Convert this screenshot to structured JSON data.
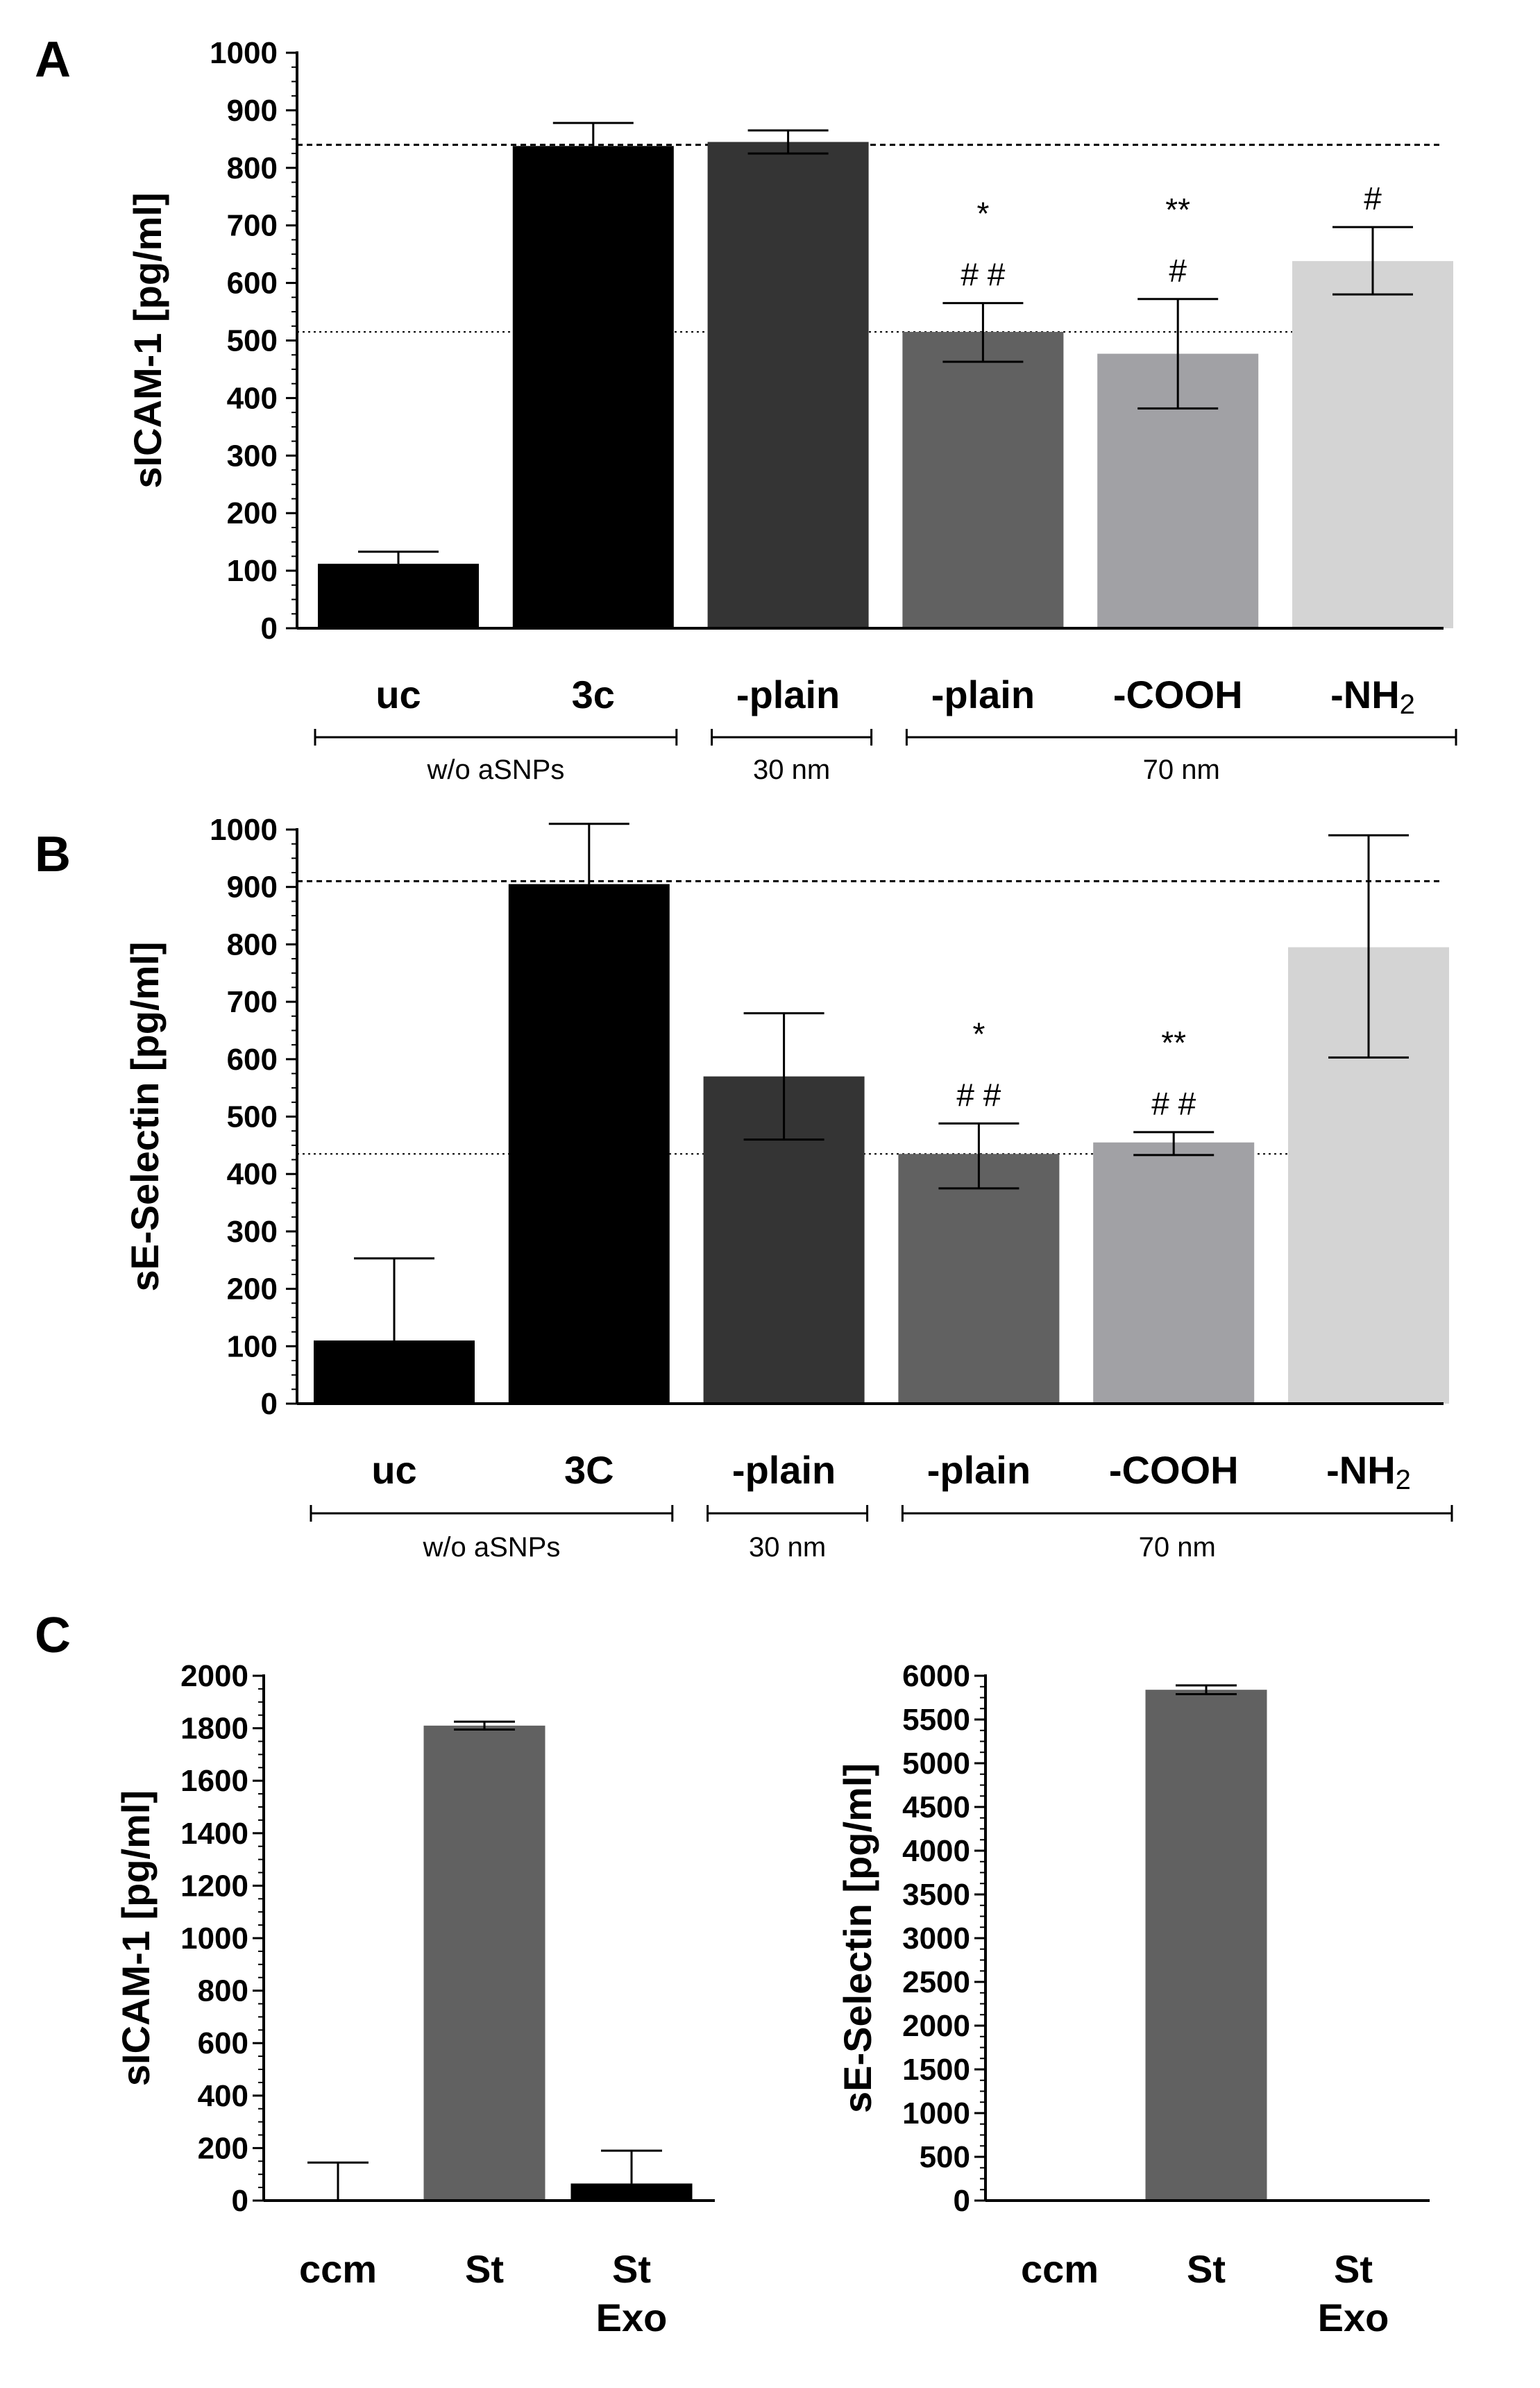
{
  "colors": {
    "uc": "#000000",
    "c3": "#000000",
    "plain30": "#343434",
    "plain70": "#616161",
    "cooh": "#a1a1a5",
    "nh2": "#d4d4d4",
    "st": "#616161",
    "stexo": "#000000",
    "axis": "#000000"
  },
  "chart_data": [
    {
      "panel": "A",
      "type": "bar",
      "ylabel": "sICAM-1 [pg/ml]",
      "ylim": [
        0,
        1000
      ],
      "yticks": [
        0,
        100,
        200,
        300,
        400,
        500,
        600,
        700,
        800,
        900,
        1000
      ],
      "categories": [
        "uc",
        "3c",
        "-plain",
        "-plain",
        "-COOH",
        "-NH"
      ],
      "category_subscripts": [
        "",
        "",
        "",
        "",
        "",
        "2"
      ],
      "values": [
        112,
        838,
        845,
        515,
        477,
        638
      ],
      "error_upper": [
        133,
        878,
        865,
        565,
        572,
        697
      ],
      "error_lower": [
        112,
        838,
        825,
        463,
        382,
        580
      ],
      "bar_colors": [
        "uc",
        "c3",
        "plain30",
        "plain70",
        "cooh",
        "nh2"
      ],
      "annotations": [
        {
          "bar": 3,
          "lines": [
            "*",
            "# #"
          ]
        },
        {
          "bar": 4,
          "lines": [
            "**",
            "#"
          ]
        },
        {
          "bar": 5,
          "lines": [
            "#"
          ]
        }
      ],
      "reference_lines": [
        {
          "value": 840,
          "style": "dashed"
        },
        {
          "value": 515,
          "style": "dotted"
        }
      ],
      "groups": [
        {
          "label": "w/o aSNPs",
          "bars": [
            0,
            1
          ]
        },
        {
          "label": "30 nm",
          "bars": [
            2,
            2
          ]
        },
        {
          "label": "70 nm",
          "bars": [
            3,
            5
          ]
        }
      ]
    },
    {
      "panel": "B",
      "type": "bar",
      "ylabel": "sE-Selectin [pg/ml]",
      "ylim": [
        0,
        1000
      ],
      "yticks": [
        0,
        100,
        200,
        300,
        400,
        500,
        600,
        700,
        800,
        900,
        1000
      ],
      "categories": [
        "uc",
        "3C",
        "-plain",
        "-plain",
        "-COOH",
        "-NH"
      ],
      "category_subscripts": [
        "",
        "",
        "",
        "",
        "",
        "2"
      ],
      "values": [
        110,
        905,
        570,
        435,
        455,
        795
      ],
      "error_upper": [
        253,
        1010,
        680,
        488,
        473,
        990
      ],
      "error_lower": [
        110,
        905,
        460,
        375,
        433,
        603
      ],
      "bar_colors": [
        "uc",
        "c3",
        "plain30",
        "plain70",
        "cooh",
        "nh2"
      ],
      "annotations": [
        {
          "bar": 3,
          "lines": [
            "*",
            "# #"
          ]
        },
        {
          "bar": 4,
          "lines": [
            "**",
            "# #"
          ]
        }
      ],
      "reference_lines": [
        {
          "value": 910,
          "style": "dashed"
        },
        {
          "value": 435,
          "style": "dotted"
        }
      ],
      "groups": [
        {
          "label": "w/o aSNPs",
          "bars": [
            0,
            1
          ]
        },
        {
          "label": "30 nm",
          "bars": [
            2,
            2
          ]
        },
        {
          "label": "70 nm",
          "bars": [
            3,
            5
          ]
        }
      ]
    },
    {
      "panel": "C",
      "type": "bar",
      "ylabel": "sICAM-1 [pg/ml]",
      "ylim": [
        0,
        2000
      ],
      "yticks": [
        0,
        200,
        400,
        600,
        800,
        1000,
        1200,
        1400,
        1600,
        1800,
        2000
      ],
      "categories": [
        [
          "ccm"
        ],
        [
          "St"
        ],
        [
          "St",
          "Exo"
        ]
      ],
      "values": [
        0,
        1810,
        65
      ],
      "error_upper": [
        145,
        1825,
        190
      ],
      "error_lower": [
        0,
        1795,
        65
      ],
      "bar_colors": [
        "uc",
        "st",
        "stexo"
      ]
    },
    {
      "panel": "C",
      "type": "bar",
      "ylabel": "sE-Selectin [pg/ml]",
      "ylim": [
        0,
        6000
      ],
      "yticks": [
        0,
        500,
        1000,
        1500,
        2000,
        2500,
        3000,
        3500,
        4000,
        4500,
        5000,
        5500,
        6000
      ],
      "categories": [
        [
          "ccm"
        ],
        [
          "St"
        ],
        [
          "St",
          "Exo"
        ]
      ],
      "values": [
        0,
        5840,
        0
      ],
      "error_upper": [
        0,
        5890,
        0
      ],
      "error_lower": [
        0,
        5790,
        0
      ],
      "bar_colors": [
        "uc",
        "st",
        "stexo"
      ]
    }
  ],
  "panel_letters": [
    "A",
    "B",
    "C"
  ]
}
